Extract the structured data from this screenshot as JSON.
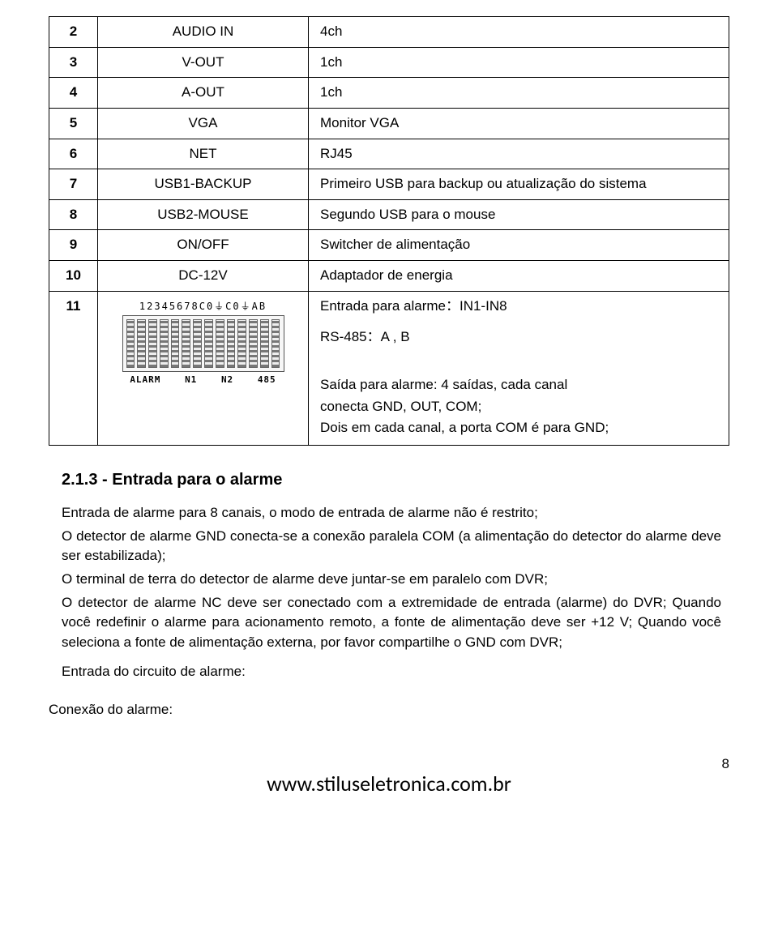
{
  "table": {
    "rows": [
      {
        "num": "2",
        "label": "AUDIO IN",
        "desc": "4ch"
      },
      {
        "num": "3",
        "label": "V-OUT",
        "desc": "1ch"
      },
      {
        "num": "4",
        "label": "A-OUT",
        "desc": "1ch"
      },
      {
        "num": "5",
        "label": "VGA",
        "desc": "Monitor VGA"
      },
      {
        "num": "6",
        "label": "NET",
        "desc": "RJ45"
      },
      {
        "num": "7",
        "label": "USB1-BACKUP",
        "desc": "Primeiro USB para backup ou atualização do sistema"
      },
      {
        "num": "8",
        "label": "USB2-MOUSE",
        "desc": "Segundo USB para o mouse"
      },
      {
        "num": "9",
        "label": "ON/OFF",
        "desc": "Switcher de alimentação"
      },
      {
        "num": "10",
        "label": "DC-12V",
        "desc": "Adaptador de energia"
      }
    ],
    "row11": {
      "num": "11",
      "desc_line1": "Entrada para alarme：IN1-IN8",
      "desc_line2": "RS-485：A , B",
      "diagram_top": "12345678C0⏚C0⏚AB",
      "diagram_bottom": [
        "ALARM",
        "N1",
        "N2",
        "485"
      ],
      "out_line1": "Saída para alarme: 4 saídas, cada canal",
      "out_line2": "conecta GND, OUT, COM;",
      "out_line3": "Dois em cada canal, a porta COM é para GND;"
    }
  },
  "section": {
    "title": "2.1.3 - Entrada para o alarme",
    "p1": "Entrada de alarme para 8 canais, o modo de entrada de alarme não é restrito;",
    "p2": "O detector de alarme GND conecta-se a conexão paralela COM (a alimentação do detector do alarme deve ser estabilizada);",
    "p3": "O terminal de terra do detector de alarme deve juntar-se em paralelo com DVR;",
    "p4": "O detector de alarme NC deve ser conectado com a extremidade de entrada (alarme) do DVR; Quando você redefinir o alarme para acionamento remoto, a fonte de alimentação deve ser +12 V; Quando você seleciona a fonte de alimentação externa, por favor compartilhe o GND com DVR;",
    "p5": "Entrada do circuito de alarme:",
    "closing": "Conexão do alarme:"
  },
  "footer": {
    "url": "www.stiluseletronica.com.br",
    "page": "8"
  },
  "style": {
    "border_color": "#000000",
    "text_color": "#000000",
    "bg": "#ffffff",
    "font_size_body": 17,
    "font_size_title": 20,
    "font_size_footer_url": 26
  }
}
